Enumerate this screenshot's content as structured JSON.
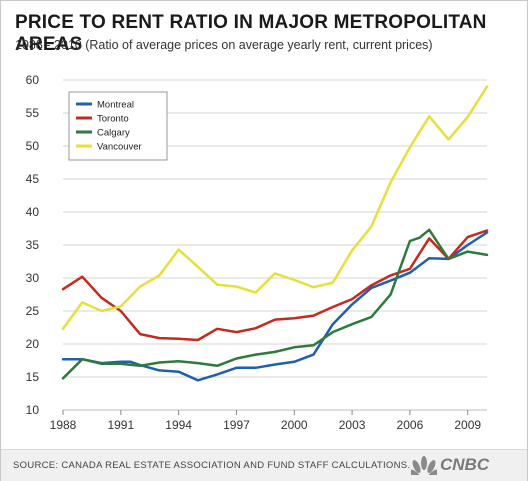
{
  "header": {
    "title": "PRICE TO RENT RATIO IN MAJOR METROPOLITAN AREAS",
    "subtitle": "1988 - 2010 (Ratio of average prices on average yearly rent, current prices)"
  },
  "footer": {
    "source": "SOURCE: CANADA REAL ESTATE ASSOCIATION AND FUND STAFF CALCULATIONS.",
    "logo_text": "CNBC"
  },
  "chart_data": {
    "type": "line",
    "title": "PRICE TO RENT RATIO IN MAJOR METROPOLITAN AREAS",
    "subtitle": "1988 - 2010 (Ratio of average prices on average yearly rent, current prices)",
    "xlabel": "",
    "ylabel": "",
    "xlim": [
      1988,
      2010
    ],
    "ylim": [
      10,
      60
    ],
    "x_ticks": [
      1988,
      1991,
      1994,
      1997,
      2000,
      2003,
      2006,
      2009
    ],
    "y_ticks": [
      10,
      15,
      20,
      25,
      30,
      35,
      40,
      45,
      50,
      55,
      60
    ],
    "grid": "horizontal",
    "legend_position": "top-left",
    "series": [
      {
        "name": "Montreal",
        "color": "#1f5fb0",
        "points": [
          [
            1988,
            17.7
          ],
          [
            1989,
            17.7
          ],
          [
            1990,
            17.1
          ],
          [
            1991,
            17.3
          ],
          [
            1991.5,
            17.3
          ],
          [
            1992,
            16.8
          ],
          [
            1993,
            16.0
          ],
          [
            1994,
            15.8
          ],
          [
            1995,
            14.5
          ],
          [
            1996,
            15.4
          ],
          [
            1997,
            16.4
          ],
          [
            1998,
            16.4
          ],
          [
            1999,
            16.9
          ],
          [
            2000,
            17.3
          ],
          [
            2001,
            18.4
          ],
          [
            2002,
            23.0
          ],
          [
            2003,
            26.0
          ],
          [
            2004,
            28.5
          ],
          [
            2005,
            29.6
          ],
          [
            2006,
            30.8
          ],
          [
            2007,
            33.0
          ],
          [
            2008,
            32.9
          ],
          [
            2009,
            35.0
          ],
          [
            2010,
            36.9
          ]
        ]
      },
      {
        "name": "Toronto",
        "color": "#c42a1e",
        "points": [
          [
            1988,
            28.3
          ],
          [
            1989,
            30.2
          ],
          [
            1990,
            27.0
          ],
          [
            1991,
            25.0
          ],
          [
            1992,
            21.5
          ],
          [
            1993,
            20.9
          ],
          [
            1994,
            20.8
          ],
          [
            1995,
            20.6
          ],
          [
            1996,
            22.3
          ],
          [
            1997,
            21.8
          ],
          [
            1998,
            22.4
          ],
          [
            1999,
            23.7
          ],
          [
            2000,
            23.9
          ],
          [
            2001,
            24.3
          ],
          [
            2002,
            25.6
          ],
          [
            2003,
            26.8
          ],
          [
            2004,
            28.9
          ],
          [
            2005,
            30.4
          ],
          [
            2006,
            31.4
          ],
          [
            2007,
            36.0
          ],
          [
            2008,
            32.9
          ],
          [
            2009,
            36.2
          ],
          [
            2010,
            37.2
          ]
        ]
      },
      {
        "name": "Calgary",
        "color": "#2f7a3a",
        "points": [
          [
            1988,
            14.8
          ],
          [
            1989,
            17.7
          ],
          [
            1990,
            17.0
          ],
          [
            1991,
            17.0
          ],
          [
            1992,
            16.7
          ],
          [
            1993,
            17.2
          ],
          [
            1994,
            17.4
          ],
          [
            1995,
            17.1
          ],
          [
            1996,
            16.7
          ],
          [
            1997,
            17.8
          ],
          [
            1998,
            18.4
          ],
          [
            1999,
            18.8
          ],
          [
            2000,
            19.5
          ],
          [
            2001,
            19.8
          ],
          [
            2002,
            21.8
          ],
          [
            2003,
            23.0
          ],
          [
            2004,
            24.1
          ],
          [
            2005,
            27.5
          ],
          [
            2006,
            35.6
          ],
          [
            2006.5,
            36.1
          ],
          [
            2007,
            37.3
          ],
          [
            2008,
            32.9
          ],
          [
            2009,
            34.0
          ],
          [
            2010,
            33.5
          ]
        ]
      },
      {
        "name": "Vancouver",
        "color": "#e6e03b",
        "points": [
          [
            1988,
            22.3
          ],
          [
            1989,
            26.3
          ],
          [
            1990,
            25.0
          ],
          [
            1991,
            25.7
          ],
          [
            1992,
            28.7
          ],
          [
            1993,
            30.4
          ],
          [
            1994,
            34.3
          ],
          [
            1995,
            31.7
          ],
          [
            1996,
            29.0
          ],
          [
            1997,
            28.7
          ],
          [
            1998,
            27.8
          ],
          [
            1999,
            30.7
          ],
          [
            2000,
            29.7
          ],
          [
            2001,
            28.6
          ],
          [
            2002,
            29.3
          ],
          [
            2003,
            34.2
          ],
          [
            2004,
            37.8
          ],
          [
            2005,
            44.5
          ],
          [
            2006,
            49.8
          ],
          [
            2007,
            54.5
          ],
          [
            2008,
            51.0
          ],
          [
            2009,
            54.4
          ],
          [
            2010,
            59.0
          ]
        ]
      }
    ]
  }
}
